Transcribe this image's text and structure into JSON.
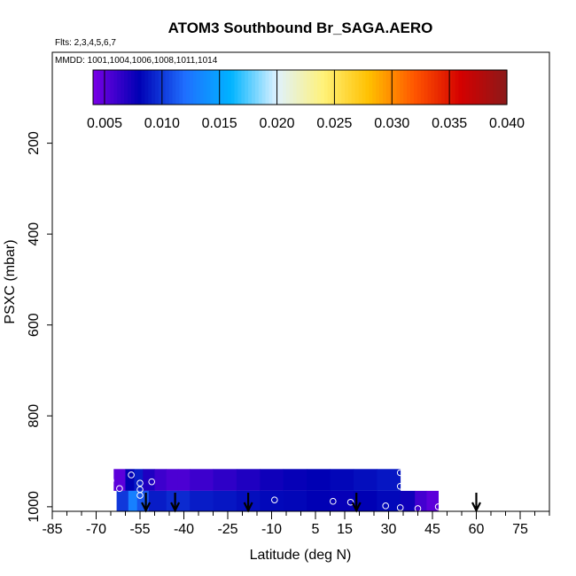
{
  "chart_data": {
    "type": "heatmap",
    "title": "ATOM3 Southbound Br_SAGA.AERO",
    "flights_note": "Flts: 2,3,4,5,6,7",
    "dates_note": "MMDD: 1001,1004,1006,1008,1011,1014",
    "xlabel": "Latitude (deg N)",
    "ylabel": "PSXC (mbar)",
    "xlim": [
      -85,
      85
    ],
    "ylim": [
      0,
      1010
    ],
    "y_reversed": true,
    "x_tick_labels": [
      "-85",
      "-70",
      "-55",
      "-40",
      "-25",
      "-10",
      "5",
      "15",
      "30",
      "45",
      "60",
      "75"
    ],
    "x_tick_values": [
      -85,
      -70,
      -55,
      -40,
      -25,
      -10,
      5,
      15,
      30,
      45,
      60,
      75
    ],
    "y_tick_labels": [
      "200",
      "400",
      "600",
      "800",
      "1000"
    ],
    "y_tick_values": [
      200,
      400,
      600,
      800,
      1000
    ],
    "colorbar": {
      "min": 0.004,
      "max": 0.04,
      "tick_labels": [
        "0.005",
        "0.010",
        "0.015",
        "0.020",
        "0.025",
        "0.030",
        "0.035",
        "0.040"
      ],
      "tick_values": [
        0.005,
        0.01,
        0.015,
        0.02,
        0.025,
        0.03,
        0.035,
        0.04
      ],
      "colors": [
        "#7a00e6",
        "#0000b4",
        "#1f6fff",
        "#00b4ff",
        "#dff2ff",
        "#fff27a",
        "#ffc000",
        "#ff5500",
        "#d40000",
        "#8b1a1a"
      ]
    },
    "cells": [
      {
        "lat0": -64,
        "lat1": -60,
        "p0": 917,
        "p1": 965,
        "value": 0.005
      },
      {
        "lat0": -60,
        "lat1": -57,
        "p0": 917,
        "p1": 965,
        "value": 0.008
      },
      {
        "lat0": -57,
        "lat1": -54,
        "p0": 917,
        "p1": 965,
        "value": 0.009
      },
      {
        "lat0": -54,
        "lat1": -50,
        "p0": 917,
        "p1": 965,
        "value": 0.007
      },
      {
        "lat0": -50,
        "lat1": -46,
        "p0": 917,
        "p1": 965,
        "value": 0.006
      },
      {
        "lat0": -46,
        "lat1": -42,
        "p0": 917,
        "p1": 965,
        "value": 0.0055
      },
      {
        "lat0": -42,
        "lat1": -38,
        "p0": 917,
        "p1": 965,
        "value": 0.0055
      },
      {
        "lat0": -38,
        "lat1": -30,
        "p0": 917,
        "p1": 965,
        "value": 0.006
      },
      {
        "lat0": -30,
        "lat1": -22,
        "p0": 917,
        "p1": 965,
        "value": 0.0065
      },
      {
        "lat0": -22,
        "lat1": -14,
        "p0": 917,
        "p1": 965,
        "value": 0.007
      },
      {
        "lat0": -14,
        "lat1": -6,
        "p0": 917,
        "p1": 965,
        "value": 0.0075
      },
      {
        "lat0": -6,
        "lat1": 2,
        "p0": 917,
        "p1": 965,
        "value": 0.0078
      },
      {
        "lat0": 2,
        "lat1": 10,
        "p0": 917,
        "p1": 965,
        "value": 0.008
      },
      {
        "lat0": 10,
        "lat1": 18,
        "p0": 917,
        "p1": 965,
        "value": 0.0082
      },
      {
        "lat0": 18,
        "lat1": 26,
        "p0": 917,
        "p1": 965,
        "value": 0.0085
      },
      {
        "lat0": 26,
        "lat1": 34,
        "p0": 917,
        "p1": 965,
        "value": 0.0088
      },
      {
        "lat0": -63,
        "lat1": -59,
        "p0": 965,
        "p1": 1010,
        "value": 0.01
      },
      {
        "lat0": -59,
        "lat1": -56,
        "p0": 965,
        "p1": 1010,
        "value": 0.013
      },
      {
        "lat0": -56,
        "lat1": -52,
        "p0": 965,
        "p1": 1010,
        "value": 0.011
      },
      {
        "lat0": -52,
        "lat1": -46,
        "p0": 965,
        "p1": 1010,
        "value": 0.009
      },
      {
        "lat0": -46,
        "lat1": -38,
        "p0": 965,
        "p1": 1010,
        "value": 0.0095
      },
      {
        "lat0": -38,
        "lat1": -30,
        "p0": 965,
        "p1": 1010,
        "value": 0.009
      },
      {
        "lat0": -30,
        "lat1": -22,
        "p0": 965,
        "p1": 1010,
        "value": 0.0088
      },
      {
        "lat0": -22,
        "lat1": -14,
        "p0": 965,
        "p1": 1010,
        "value": 0.0085
      },
      {
        "lat0": -14,
        "lat1": -6,
        "p0": 965,
        "p1": 1010,
        "value": 0.0083
      },
      {
        "lat0": -6,
        "lat1": 2,
        "p0": 965,
        "p1": 1010,
        "value": 0.0082
      },
      {
        "lat0": 2,
        "lat1": 10,
        "p0": 965,
        "p1": 1010,
        "value": 0.008
      },
      {
        "lat0": 10,
        "lat1": 18,
        "p0": 965,
        "p1": 1010,
        "value": 0.0078
      },
      {
        "lat0": 18,
        "lat1": 26,
        "p0": 965,
        "p1": 1010,
        "value": 0.008
      },
      {
        "lat0": 26,
        "lat1": 34,
        "p0": 965,
        "p1": 1010,
        "value": 0.0083
      },
      {
        "lat0": 34,
        "lat1": 39,
        "p0": 965,
        "p1": 1010,
        "value": 0.0075
      },
      {
        "lat0": 39,
        "lat1": 43,
        "p0": 965,
        "p1": 1010,
        "value": 0.0058
      },
      {
        "lat0": 43,
        "lat1": 47,
        "p0": 965,
        "p1": 1010,
        "value": 0.005
      }
    ],
    "sample_points": [
      {
        "lat": -58,
        "p": 930
      },
      {
        "lat": -55,
        "p": 948
      },
      {
        "lat": -51,
        "p": 945
      },
      {
        "lat": -62,
        "p": 960
      },
      {
        "lat": -55,
        "p": 962
      },
      {
        "lat": -55,
        "p": 975
      },
      {
        "lat": -65,
        "p": 942
      },
      {
        "lat": -9,
        "p": 985
      },
      {
        "lat": 11,
        "p": 988
      },
      {
        "lat": 17,
        "p": 990
      },
      {
        "lat": 34,
        "p": 925
      },
      {
        "lat": 34,
        "p": 955
      },
      {
        "lat": 29,
        "p": 998
      },
      {
        "lat": 34,
        "p": 1002
      },
      {
        "lat": 40,
        "p": 1004
      },
      {
        "lat": 47,
        "p": 1000
      }
    ],
    "arrows_lat": [
      -53,
      -43,
      -18,
      19,
      60
    ]
  }
}
